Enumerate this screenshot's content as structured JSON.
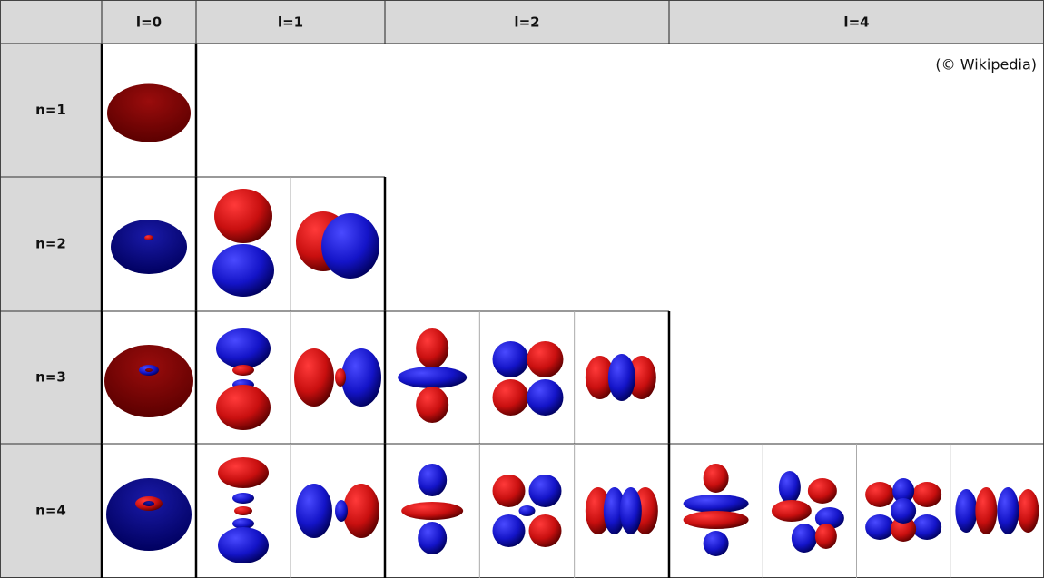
{
  "header": {
    "columns": [
      "l=0",
      "l=1",
      "l=2",
      "l=4"
    ]
  },
  "rows": [
    "n=1",
    "n=2",
    "n=3",
    "n=4"
  ],
  "credit": "(© Wikipedia)"
}
